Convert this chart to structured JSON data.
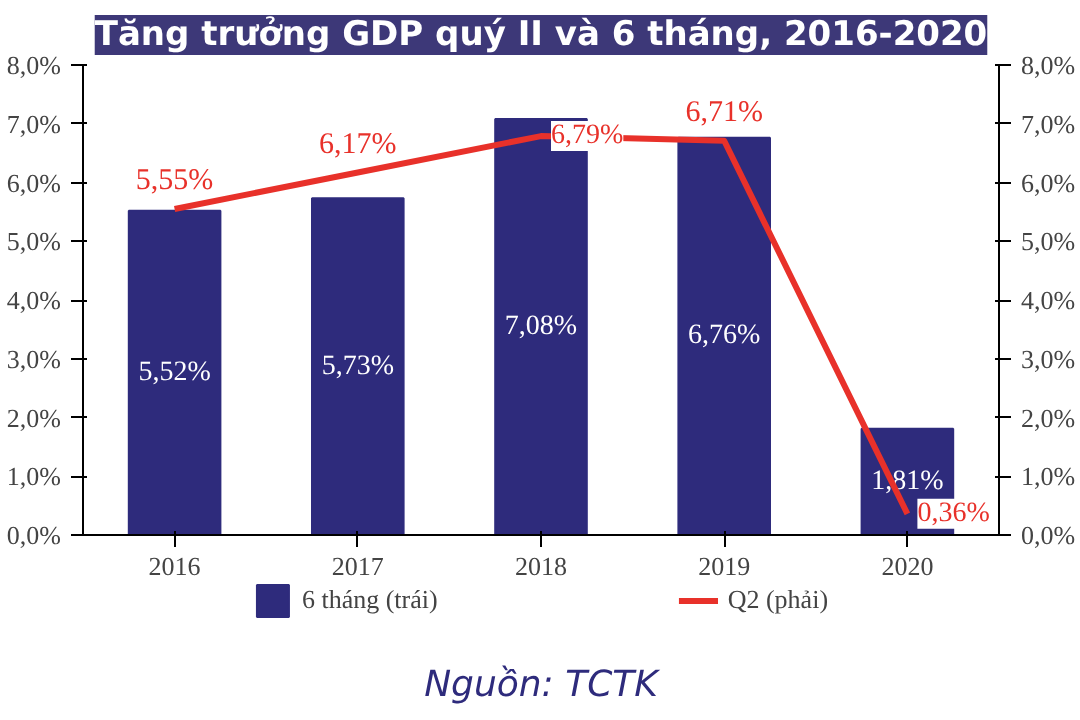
{
  "chart_data": {
    "type": "bar",
    "title": "Tăng trưởng GDP quý II và 6 tháng, 2016-2020",
    "categories": [
      "2016",
      "2017",
      "2018",
      "2019",
      "2020"
    ],
    "series": [
      {
        "name": "6 tháng (trái)",
        "color": "#2e2b7c",
        "values": [
          5.52,
          5.73,
          7.08,
          6.76,
          1.81
        ],
        "value_labels": [
          "5,52%",
          "5,73%",
          "7,08%",
          "6,76%",
          "1,81%"
        ]
      },
      {
        "name": "Q2 (phải)",
        "type": "line",
        "axis": "y2",
        "color": "#e8312a",
        "values": [
          5.55,
          6.17,
          6.79,
          6.71,
          0.36
        ],
        "value_labels": [
          "5,55%",
          "6,17%",
          "6,79%",
          "6,71%",
          "0,36%"
        ]
      }
    ],
    "ylim": [
      0,
      8
    ],
    "yticks": [
      {
        "value": 0,
        "label": "0,0%"
      },
      {
        "value": 1,
        "label": "1,0%"
      },
      {
        "value": 2,
        "label": "2,0%"
      },
      {
        "value": 3,
        "label": "3,0%"
      },
      {
        "value": 4,
        "label": "4,0%"
      },
      {
        "value": 5,
        "label": "5,0%"
      },
      {
        "value": 6,
        "label": "6,0%"
      },
      {
        "value": 7,
        "label": "7,0%"
      },
      {
        "value": 8,
        "label": "8,0%"
      }
    ],
    "y2lim": [
      0,
      8
    ],
    "y2ticks": [
      {
        "value": 0,
        "label": "0,0%"
      },
      {
        "value": 1,
        "label": "1,0%"
      },
      {
        "value": 2,
        "label": "2,0%"
      },
      {
        "value": 3,
        "label": "3,0%"
      },
      {
        "value": 4,
        "label": "4,0%"
      },
      {
        "value": 5,
        "label": "5,0%"
      },
      {
        "value": 6,
        "label": "6,0%"
      },
      {
        "value": 7,
        "label": "7,0%"
      },
      {
        "value": 8,
        "label": "8,0%"
      }
    ],
    "grid": false,
    "legend": "bottom",
    "annotations": [
      "Nguồn: TCTK"
    ]
  }
}
